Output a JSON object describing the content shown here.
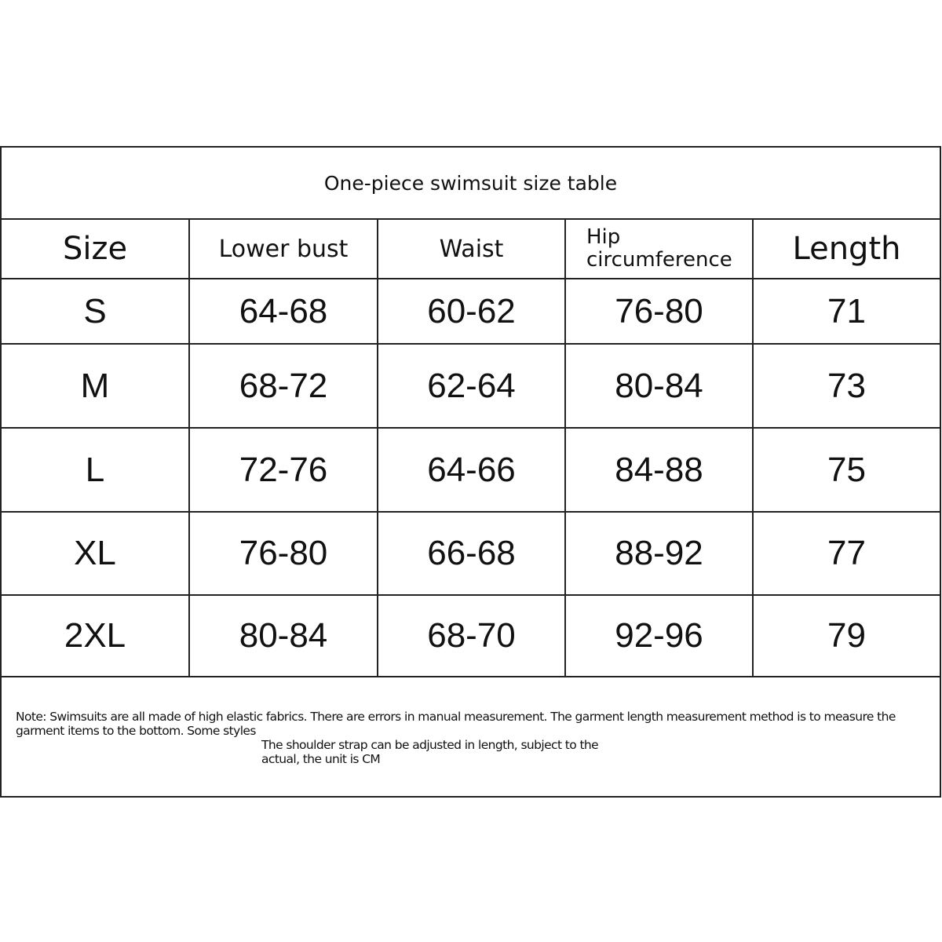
{
  "title": "One-piece swimsuit size table",
  "headers": [
    "Size",
    "Lower bust",
    "Waist",
    "Hip circumference",
    "Length"
  ],
  "rows": [
    [
      "S",
      "64-68",
      "60-62",
      "76-80",
      "71"
    ],
    [
      "M",
      "68-72",
      "62-64",
      "80-84",
      "73"
    ],
    [
      "L",
      "72-76",
      "64-66",
      "84-88",
      "75"
    ],
    [
      "XL",
      "76-80",
      "66-68",
      "88-92",
      "77"
    ],
    [
      "2XL",
      "80-84",
      "68-70",
      "92-96",
      "79"
    ]
  ],
  "note": {
    "line1": "Note: Swimsuits are all made of high elastic fabrics. There are errors in manual measurement. The garment length measurement method is to measure the garment items to the bottom. Some styles",
    "line2": "The shoulder strap can be adjusted in length, subject to the",
    "line3": "actual, the unit is CM"
  }
}
